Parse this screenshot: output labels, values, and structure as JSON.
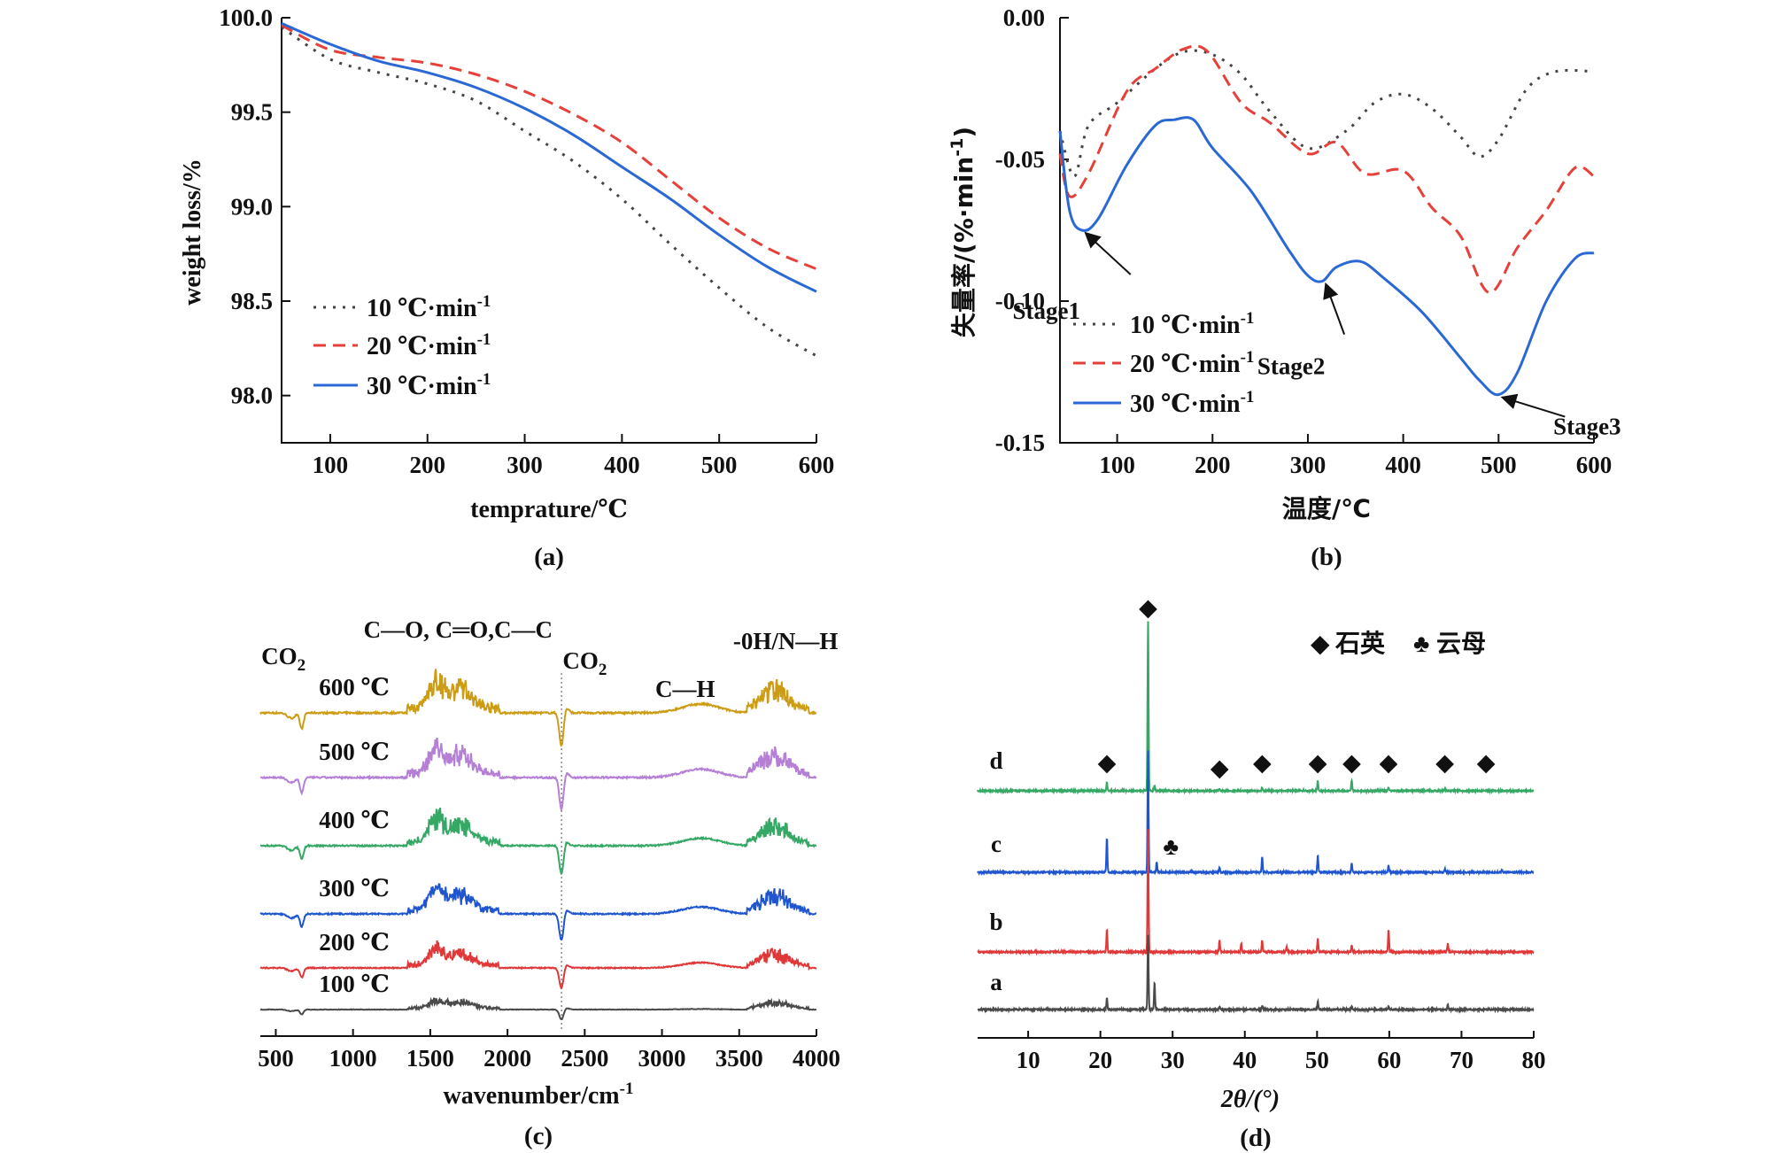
{
  "chart_data": [
    {
      "id": "a",
      "type": "line",
      "caption": "(a)",
      "xlabel": "temprature/℃",
      "ylabel": "weight loss/%",
      "xlim": [
        50,
        600
      ],
      "ylim": [
        97.75,
        100.0
      ],
      "xticks": [
        100,
        200,
        300,
        400,
        500,
        600
      ],
      "xtick_labels": [
        "100",
        "200",
        "300",
        "400",
        "500",
        "600"
      ],
      "yticks": [
        98.0,
        98.5,
        99.0,
        99.5,
        100.0
      ],
      "ytick_labels": [
        "98.0",
        "98.5",
        "99.0",
        "99.5",
        "100.0"
      ],
      "legend": {
        "position": "bottom-left",
        "sup": "-1"
      },
      "series": [
        {
          "name": "10 ℃·min",
          "color": "#444444",
          "dash": "dot",
          "x": [
            50,
            100,
            150,
            200,
            250,
            300,
            350,
            400,
            450,
            500,
            550,
            600
          ],
          "y": [
            99.95,
            99.78,
            99.71,
            99.65,
            99.56,
            99.4,
            99.24,
            99.04,
            98.8,
            98.57,
            98.36,
            98.21
          ]
        },
        {
          "name": "20 ℃·min",
          "color": "#e5403a",
          "dash": "dash",
          "x": [
            50,
            100,
            150,
            200,
            250,
            300,
            350,
            400,
            450,
            500,
            550,
            600
          ],
          "y": [
            99.96,
            99.83,
            99.79,
            99.76,
            99.7,
            99.61,
            99.49,
            99.34,
            99.14,
            98.94,
            98.78,
            98.67
          ]
        },
        {
          "name": "30 ℃·min",
          "color": "#2a68d4",
          "dash": "solid",
          "x": [
            50,
            100,
            150,
            200,
            250,
            300,
            350,
            400,
            450,
            500,
            550,
            600
          ],
          "y": [
            99.97,
            99.86,
            99.77,
            99.71,
            99.63,
            99.52,
            99.38,
            99.21,
            99.04,
            98.85,
            98.68,
            98.55
          ]
        }
      ]
    },
    {
      "id": "b",
      "type": "line",
      "caption": "(b)",
      "xlabel": "温度/℃",
      "ylabel": "失量率/(%·min",
      "ylabel_sup": "-1",
      "ylabel_close": ")",
      "xlim": [
        40,
        600
      ],
      "ylim": [
        -0.15,
        0.0
      ],
      "xticks": [
        100,
        200,
        300,
        400,
        500,
        600
      ],
      "xtick_labels": [
        "100",
        "200",
        "300",
        "400",
        "500",
        "600"
      ],
      "yticks": [
        0.0,
        -0.05,
        -0.1,
        -0.15
      ],
      "ytick_labels": [
        "0.00",
        "-0.05",
        "-0.10",
        "-0.15"
      ],
      "legend": {
        "position": "bottom-left",
        "sup": "-1"
      },
      "annotations": [
        {
          "text": "Stage1",
          "x": 63,
          "y": -0.075
        },
        {
          "text": "Stage2",
          "x": 315,
          "y": -0.093
        },
        {
          "text": "Stage3",
          "x": 500,
          "y": -0.133
        }
      ],
      "series": [
        {
          "name": "10 ℃·min",
          "color": "#444444",
          "dash": "dot",
          "x": [
            40,
            55,
            70,
            100,
            140,
            170,
            200,
            230,
            260,
            300,
            340,
            370,
            400,
            430,
            460,
            480,
            500,
            530,
            560,
            600
          ],
          "y": [
            -0.04,
            -0.056,
            -0.038,
            -0.03,
            -0.018,
            -0.012,
            -0.013,
            -0.02,
            -0.033,
            -0.046,
            -0.04,
            -0.03,
            -0.027,
            -0.032,
            -0.042,
            -0.049,
            -0.043,
            -0.025,
            -0.019,
            -0.019
          ]
        },
        {
          "name": "20 ℃·min",
          "color": "#e5403a",
          "dash": "dash",
          "x": [
            40,
            50,
            70,
            110,
            140,
            170,
            195,
            230,
            260,
            300,
            330,
            360,
            400,
            430,
            460,
            490,
            520,
            550,
            580,
            600
          ],
          "y": [
            -0.048,
            -0.063,
            -0.055,
            -0.026,
            -0.018,
            -0.011,
            -0.012,
            -0.03,
            -0.037,
            -0.048,
            -0.044,
            -0.055,
            -0.054,
            -0.067,
            -0.077,
            -0.097,
            -0.081,
            -0.068,
            -0.053,
            -0.056
          ]
        },
        {
          "name": "30 ℃·min",
          "color": "#2a68d4",
          "dash": "solid",
          "x": [
            40,
            50,
            63,
            80,
            110,
            140,
            160,
            180,
            200,
            240,
            280,
            300,
            315,
            330,
            355,
            380,
            420,
            460,
            480,
            500,
            520,
            550,
            580,
            600
          ],
          "y": [
            -0.04,
            -0.068,
            -0.075,
            -0.071,
            -0.052,
            -0.038,
            -0.036,
            -0.036,
            -0.046,
            -0.061,
            -0.082,
            -0.091,
            -0.093,
            -0.088,
            -0.086,
            -0.092,
            -0.104,
            -0.12,
            -0.128,
            -0.133,
            -0.125,
            -0.1,
            -0.085,
            -0.083
          ]
        }
      ]
    },
    {
      "id": "c",
      "type": "line",
      "caption": "(c)",
      "xlabel": "wavenumber/cm",
      "xlabel_sup": "-1",
      "xlim": [
        400,
        4000
      ],
      "xticks": [
        500,
        1000,
        1500,
        2000,
        2500,
        3000,
        3500,
        4000
      ],
      "xtick_labels": [
        "500",
        "1000",
        "1500",
        "2000",
        "2500",
        "3000",
        "3500",
        "4000"
      ],
      "reference_line_x": 2350,
      "annotations": [
        {
          "text": "CO",
          "sub": "2",
          "x": 550
        },
        {
          "text": "C—O, C═O,C—C",
          "x": 1680
        },
        {
          "text": "CO",
          "sub": "2",
          "x": 2500
        },
        {
          "text": "C—H",
          "x": 3150
        },
        {
          "text": "-0H/N—H",
          "x": 3800
        }
      ],
      "series": [
        {
          "name": "600 ℃",
          "color": "#cc9c14",
          "amplitude": 1.0
        },
        {
          "name": "500 ℃",
          "color": "#b57fd6",
          "amplitude": 0.95
        },
        {
          "name": "400 ℃",
          "color": "#35a866",
          "amplitude": 0.85
        },
        {
          "name": "300 ℃",
          "color": "#1f56d0",
          "amplitude": 0.8
        },
        {
          "name": "200 ℃",
          "color": "#e03838",
          "amplitude": 0.6
        },
        {
          "name": "100 ℃",
          "color": "#4a4a4a",
          "amplitude": 0.3
        }
      ]
    },
    {
      "id": "d",
      "type": "line",
      "caption": "(d)",
      "xlabel": "2θ/(°)",
      "xlim": [
        3,
        80
      ],
      "xticks": [
        10,
        20,
        30,
        40,
        50,
        60,
        70,
        80
      ],
      "xtick_labels": [
        "10",
        "20",
        "30",
        "40",
        "50",
        "60",
        "70",
        "80"
      ],
      "legend": {
        "quartz_symbol": "◆",
        "quartz": "石英",
        "mica_symbol": "♣",
        "mica": "云母"
      },
      "quartz_markers_2theta": [
        20.9,
        26.6,
        36.5,
        42.4,
        50.1,
        54.8,
        59.9,
        67.7,
        73.4
      ],
      "mica_marker_2theta": 27.8,
      "series": [
        {
          "name": "d",
          "color": "#35a866",
          "peaks": [
            {
              "x": 20.9,
              "h": 0.05
            },
            {
              "x": 26.6,
              "h": 1.0
            },
            {
              "x": 27.5,
              "h": 0.03
            },
            {
              "x": 36.5,
              "h": 0.015
            },
            {
              "x": 42.4,
              "h": 0.02
            },
            {
              "x": 50.1,
              "h": 0.06
            },
            {
              "x": 54.8,
              "h": 0.06
            },
            {
              "x": 59.9,
              "h": 0.02
            },
            {
              "x": 67.7,
              "h": 0.015
            }
          ]
        },
        {
          "name": "c",
          "color": "#1f56d0",
          "peaks": [
            {
              "x": 20.9,
              "h": 0.2
            },
            {
              "x": 26.6,
              "h": 0.72
            },
            {
              "x": 27.8,
              "h": 0.06
            },
            {
              "x": 36.5,
              "h": 0.03
            },
            {
              "x": 42.4,
              "h": 0.09
            },
            {
              "x": 50.1,
              "h": 0.1
            },
            {
              "x": 54.8,
              "h": 0.05
            },
            {
              "x": 59.9,
              "h": 0.04
            },
            {
              "x": 67.7,
              "h": 0.02
            },
            {
              "x": 75.6,
              "h": 0.015
            }
          ]
        },
        {
          "name": "b",
          "color": "#e03838",
          "peaks": [
            {
              "x": 20.9,
              "h": 0.13
            },
            {
              "x": 26.6,
              "h": 0.72
            },
            {
              "x": 36.5,
              "h": 0.07
            },
            {
              "x": 39.5,
              "h": 0.05
            },
            {
              "x": 42.4,
              "h": 0.07
            },
            {
              "x": 45.8,
              "h": 0.03
            },
            {
              "x": 50.1,
              "h": 0.08
            },
            {
              "x": 54.8,
              "h": 0.04
            },
            {
              "x": 59.9,
              "h": 0.13
            },
            {
              "x": 68.1,
              "h": 0.05
            }
          ]
        },
        {
          "name": "a",
          "color": "#4a4a4a",
          "peaks": [
            {
              "x": 20.9,
              "h": 0.07
            },
            {
              "x": 26.6,
              "h": 0.44
            },
            {
              "x": 27.5,
              "h": 0.16
            },
            {
              "x": 36.5,
              "h": 0.02
            },
            {
              "x": 42.4,
              "h": 0.02
            },
            {
              "x": 50.1,
              "h": 0.05
            },
            {
              "x": 54.8,
              "h": 0.02
            },
            {
              "x": 59.9,
              "h": 0.02
            },
            {
              "x": 68.1,
              "h": 0.03
            }
          ]
        }
      ]
    }
  ]
}
